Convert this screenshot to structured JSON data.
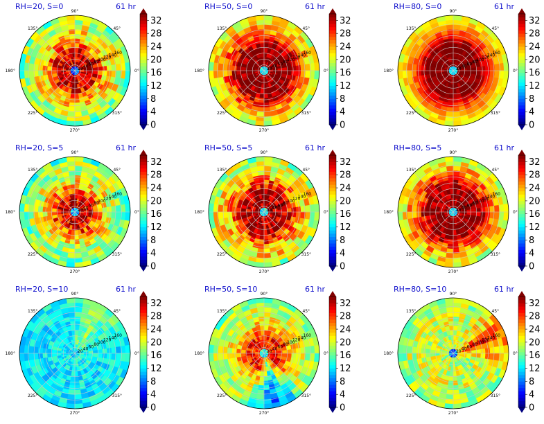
{
  "chart_data": [
    {
      "type": "heatmap",
      "projection": "polar",
      "title": "RH=20, S=0",
      "time_label": "61 hr",
      "angle_ticks": [
        "90°",
        "45°",
        "0°",
        "315°",
        "270°",
        "225°",
        "180°",
        "135°"
      ],
      "radial_ticks": [
        20,
        40,
        60,
        80,
        100,
        120,
        140,
        160
      ],
      "colorbar": {
        "ticks": [
          0,
          4,
          8,
          12,
          16,
          20,
          24,
          28,
          32
        ],
        "range": [
          0,
          34
        ],
        "extend": "both",
        "colormap": "jet"
      },
      "field": {
        "center": 8,
        "core_radius": 12,
        "peak": 31,
        "peak_radius": 60,
        "halo": 24,
        "halo_radius": 100,
        "edge": 17,
        "noise": 5,
        "sector_angle": null,
        "sector_width": null,
        "sector_delta": 0
      }
    },
    {
      "type": "heatmap",
      "projection": "polar",
      "title": "RH=50, S=0",
      "time_label": "61 hr",
      "angle_ticks": [
        "90°",
        "45°",
        "0°",
        "315°",
        "270°",
        "225°",
        "180°",
        "135°"
      ],
      "radial_ticks": [
        20,
        40,
        60,
        80,
        100,
        120,
        140,
        160
      ],
      "colorbar": {
        "ticks": [
          0,
          4,
          8,
          12,
          16,
          20,
          24,
          28,
          32
        ],
        "range": [
          0,
          34
        ],
        "extend": "both",
        "colormap": "jet"
      },
      "field": {
        "center": 12,
        "core_radius": 12,
        "peak": 34,
        "peak_radius": 80,
        "halo": 28,
        "halo_radius": 120,
        "edge": 19,
        "noise": 4,
        "sector_angle": null,
        "sector_width": null,
        "sector_delta": 0
      }
    },
    {
      "type": "heatmap",
      "projection": "polar",
      "title": "RH=80, S=0",
      "time_label": "61 hr",
      "angle_ticks": [
        "90°",
        "45°",
        "0°",
        "315°",
        "270°",
        "225°",
        "180°",
        "135°"
      ],
      "radial_ticks": [
        20,
        40,
        60,
        80,
        100,
        120,
        140,
        160
      ],
      "colorbar": {
        "ticks": [
          0,
          4,
          8,
          12,
          16,
          20,
          24,
          28,
          32
        ],
        "range": [
          0,
          34
        ],
        "extend": "both",
        "colormap": "jet"
      },
      "field": {
        "center": 12,
        "core_radius": 10,
        "peak": 34,
        "peak_radius": 90,
        "halo": 27,
        "halo_radius": 130,
        "edge": 20,
        "noise": 2,
        "sector_angle": null,
        "sector_width": null,
        "sector_delta": 0
      }
    },
    {
      "type": "heatmap",
      "projection": "polar",
      "title": "RH=20, S=5",
      "time_label": "61 hr",
      "angle_ticks": [
        "90°",
        "45°",
        "0°",
        "315°",
        "270°",
        "225°",
        "180°",
        "135°"
      ],
      "radial_ticks": [
        20,
        40,
        60,
        80,
        100,
        120,
        140,
        160
      ],
      "colorbar": {
        "ticks": [
          0,
          4,
          8,
          12,
          16,
          20,
          24,
          28,
          32
        ],
        "range": [
          0,
          34
        ],
        "extend": "both",
        "colormap": "jet"
      },
      "field": {
        "center": 10,
        "core_radius": 10,
        "peak": 31,
        "peak_radius": 50,
        "halo": 22,
        "halo_radius": 100,
        "edge": 16,
        "noise": 5,
        "sector_angle": null,
        "sector_width": null,
        "sector_delta": 0
      }
    },
    {
      "type": "heatmap",
      "projection": "polar",
      "title": "RH=50, S=5",
      "time_label": "61 hr",
      "angle_ticks": [
        "90°",
        "45°",
        "0°",
        "315°",
        "270°",
        "225°",
        "180°",
        "135°"
      ],
      "radial_ticks": [
        20,
        40,
        60,
        80,
        100,
        120,
        140,
        160
      ],
      "colorbar": {
        "ticks": [
          0,
          4,
          8,
          12,
          16,
          20,
          24,
          28,
          32
        ],
        "range": [
          0,
          34
        ],
        "extend": "both",
        "colormap": "jet"
      },
      "field": {
        "center": 12,
        "core_radius": 10,
        "peak": 33,
        "peak_radius": 70,
        "halo": 25,
        "halo_radius": 115,
        "edge": 18,
        "noise": 5,
        "sector_angle": null,
        "sector_width": null,
        "sector_delta": 0
      }
    },
    {
      "type": "heatmap",
      "projection": "polar",
      "title": "RH=80, S=5",
      "time_label": "61 hr",
      "angle_ticks": [
        "90°",
        "45°",
        "0°",
        "315°",
        "270°",
        "225°",
        "180°",
        "135°"
      ],
      "radial_ticks": [
        20,
        40,
        60,
        80,
        100,
        120,
        140,
        160
      ],
      "colorbar": {
        "ticks": [
          0,
          4,
          8,
          12,
          16,
          20,
          24,
          28,
          32
        ],
        "range": [
          0,
          34
        ],
        "extend": "both",
        "colormap": "jet"
      },
      "field": {
        "center": 12,
        "core_radius": 10,
        "peak": 34,
        "peak_radius": 85,
        "halo": 27,
        "halo_radius": 125,
        "edge": 19,
        "noise": 4,
        "sector_angle": null,
        "sector_width": null,
        "sector_delta": 0
      }
    },
    {
      "type": "heatmap",
      "projection": "polar",
      "title": "RH=20, S=10",
      "time_label": "61 hr",
      "angle_ticks": [
        "90°",
        "45°",
        "0°",
        "315°",
        "270°",
        "225°",
        "180°",
        "135°"
      ],
      "radial_ticks": [
        20,
        40,
        60,
        80,
        100,
        120,
        140,
        160
      ],
      "colorbar": {
        "ticks": [
          0,
          4,
          8,
          12,
          16,
          20,
          24,
          28,
          32
        ],
        "range": [
          0,
          34
        ],
        "extend": "both",
        "colormap": "jet"
      },
      "field": {
        "center": 11,
        "core_radius": 10,
        "peak": 13,
        "peak_radius": 60,
        "halo": 12,
        "halo_radius": 110,
        "edge": 13,
        "noise": 3,
        "sector_angle": 60,
        "sector_width": 45,
        "sector_delta": 5
      }
    },
    {
      "type": "heatmap",
      "projection": "polar",
      "title": "RH=50, S=10",
      "time_label": "61 hr",
      "angle_ticks": [
        "90°",
        "45°",
        "0°",
        "315°",
        "270°",
        "225°",
        "180°",
        "135°"
      ],
      "radial_ticks": [
        20,
        40,
        60,
        80,
        100,
        120,
        140,
        160
      ],
      "colorbar": {
        "ticks": [
          0,
          4,
          8,
          12,
          16,
          20,
          24,
          28,
          32
        ],
        "range": [
          0,
          34
        ],
        "extend": "both",
        "colormap": "jet"
      },
      "field": {
        "center": 14,
        "core_radius": 8,
        "peak": 29,
        "peak_radius": 55,
        "halo": 22,
        "halo_radius": 100,
        "edge": 17,
        "noise": 4,
        "sector_angle": 285,
        "sector_width": 35,
        "sector_delta": -12
      }
    },
    {
      "type": "heatmap",
      "projection": "polar",
      "title": "RH=80, S=10",
      "time_label": "61 hr",
      "angle_ticks": [
        "90°",
        "45°",
        "0°",
        "315°",
        "270°",
        "225°",
        "180°",
        "135°"
      ],
      "radial_ticks": [
        20,
        40,
        60,
        80,
        100,
        120,
        140,
        160
      ],
      "colorbar": {
        "ticks": [
          0,
          4,
          8,
          12,
          16,
          20,
          24,
          28,
          32
        ],
        "range": [
          0,
          34
        ],
        "extend": "both",
        "colormap": "jet"
      },
      "field": {
        "center": 8,
        "core_radius": 8,
        "peak": 19,
        "peak_radius": 60,
        "halo": 20,
        "halo_radius": 110,
        "edge": 18,
        "noise": 4,
        "sector_angle": 20,
        "sector_width": 40,
        "sector_delta": 8
      }
    }
  ]
}
